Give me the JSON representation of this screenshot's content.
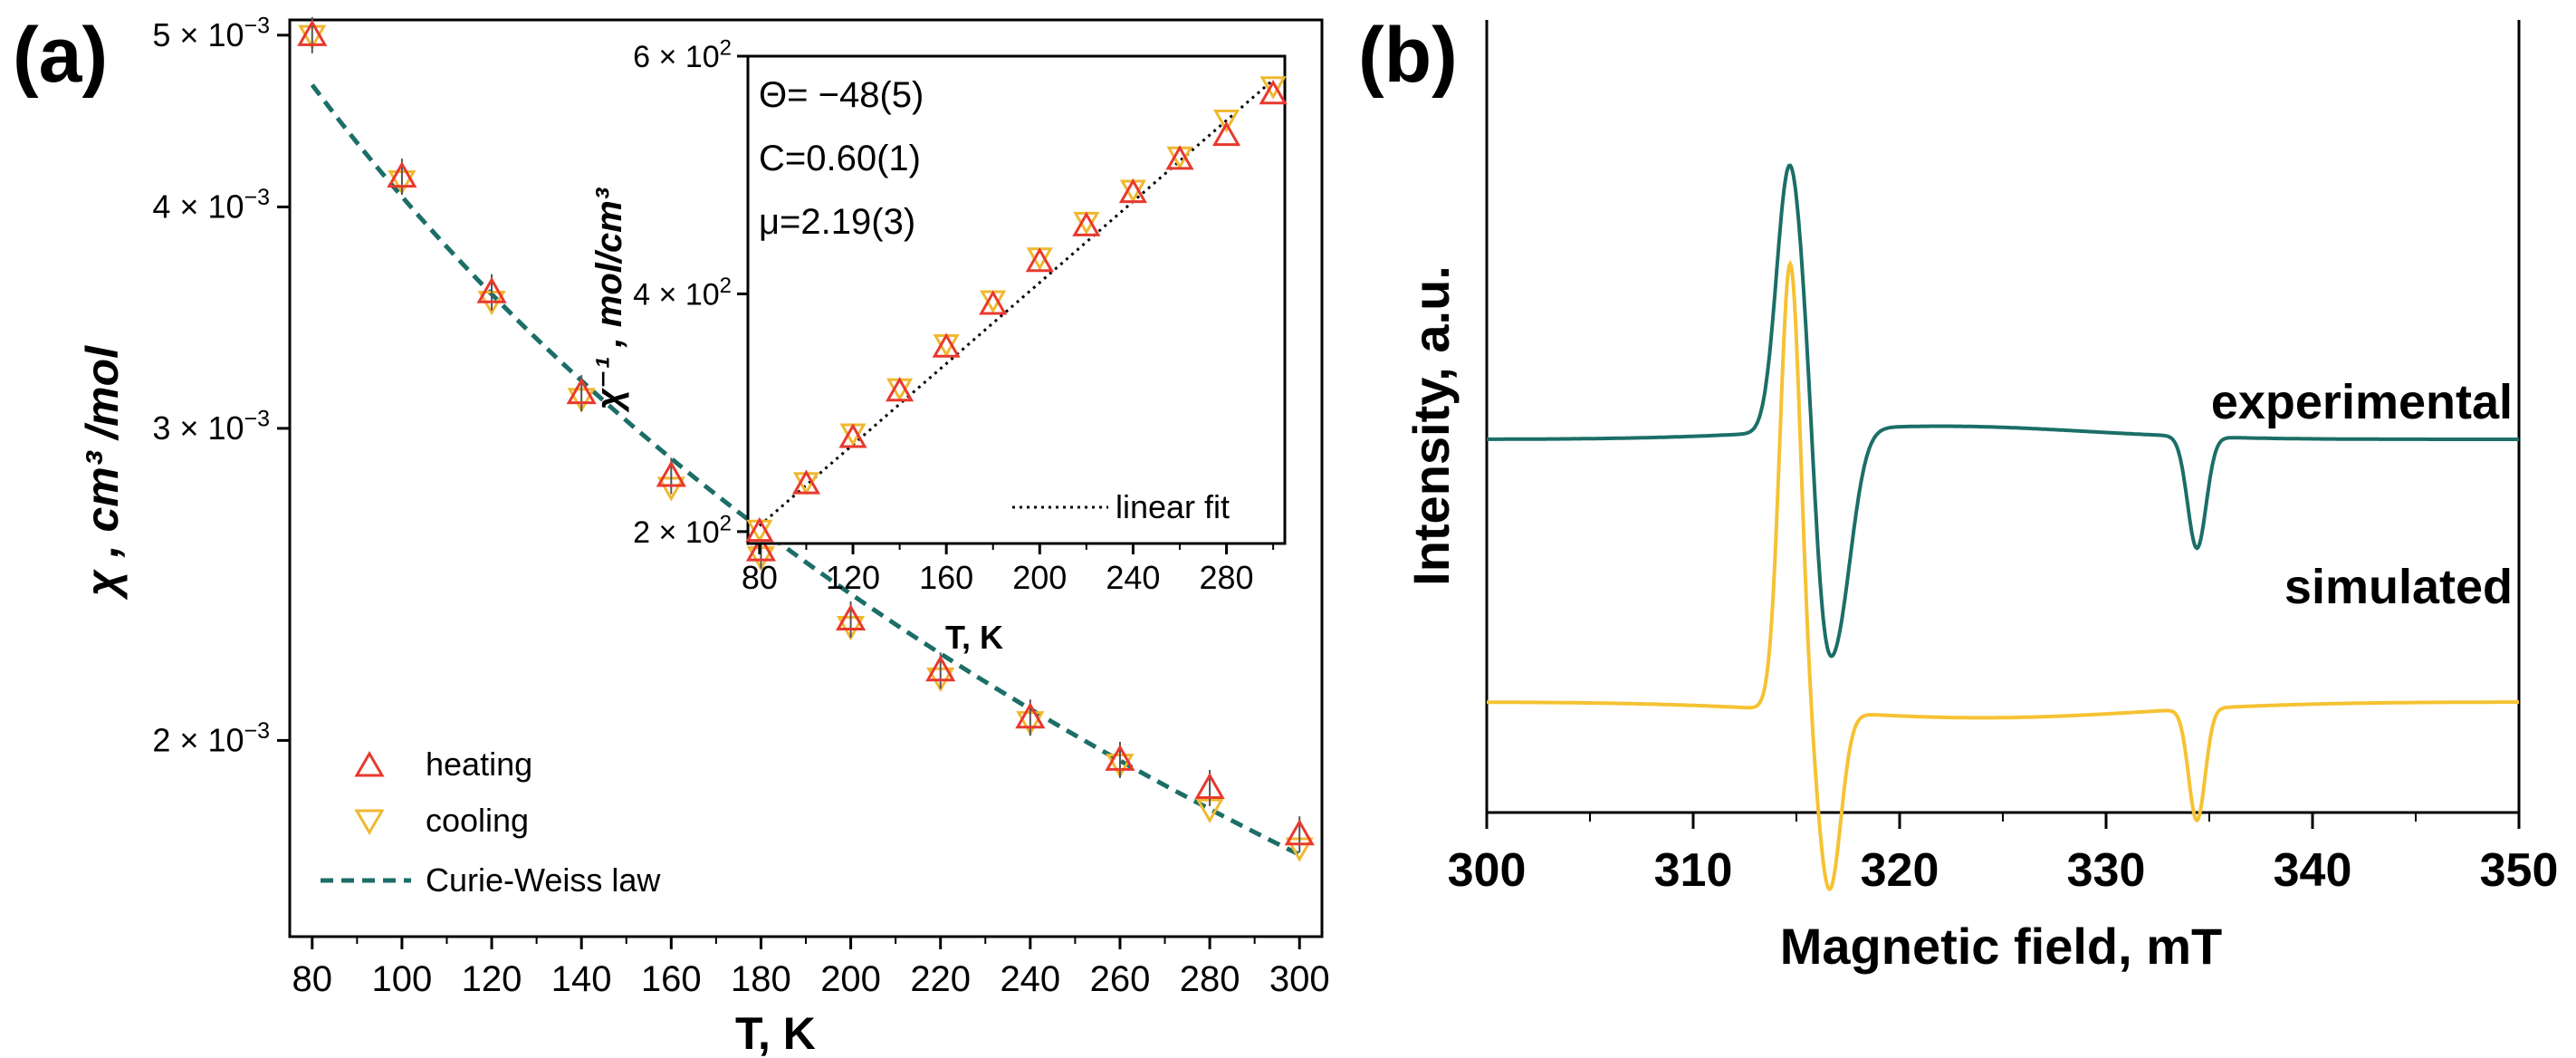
{
  "panels": {
    "a": {
      "label": "(a)"
    },
    "b": {
      "label": "(b)"
    }
  },
  "colors": {
    "heating": "#e8392e",
    "cooling": "#f0b830",
    "fit": "#1c6e68",
    "experimental": "#1c6e68",
    "simulated": "#f5c233",
    "axis": "#000000"
  },
  "chart_data": [
    {
      "id": "panel-a-main",
      "type": "scatter",
      "title": "",
      "xlabel": "T, K",
      "ylabel": "χ , cm³ /mol",
      "xlim": [
        75,
        305
      ],
      "ylim": [
        0.00155,
        0.0051
      ],
      "yscale": "log",
      "xticks": [
        80,
        100,
        120,
        140,
        160,
        180,
        200,
        220,
        240,
        260,
        280,
        300
      ],
      "yticks": [
        {
          "value": 0.005,
          "mant": "5 × 10",
          "exp": "−3"
        },
        {
          "value": 0.004,
          "mant": "4 × 10",
          "exp": "−3"
        },
        {
          "value": 0.003,
          "mant": "3 × 10",
          "exp": "−3"
        },
        {
          "value": 0.002,
          "mant": "2 × 10",
          "exp": "−3"
        }
      ],
      "series": [
        {
          "name": "heating",
          "marker": "triangle-up",
          "x": [
            80,
            100,
            120,
            140,
            160,
            180,
            200,
            220,
            240,
            260,
            280,
            300
          ],
          "y": [
            0.005,
            0.00416,
            0.00358,
            0.00314,
            0.00282,
            0.00256,
            0.00234,
            0.00219,
            0.00206,
            0.00195,
            0.00188,
            0.00177
          ]
        },
        {
          "name": "cooling",
          "marker": "triangle-down",
          "x": [
            80,
            100,
            120,
            140,
            160,
            180,
            200,
            220,
            240,
            260,
            280,
            300
          ],
          "y": [
            0.005,
            0.00414,
            0.00354,
            0.00312,
            0.00278,
            0.00254,
            0.00232,
            0.00217,
            0.00205,
            0.00194,
            0.00183,
            0.00174
          ]
        },
        {
          "name": "Curie-Weiss law",
          "style": "dashed",
          "C": 0.6,
          "theta": -48
        }
      ],
      "legend": [
        "heating",
        "cooling",
        "Curie-Weiss law"
      ],
      "legend_position": "bottom-left"
    },
    {
      "id": "panel-a-inset",
      "type": "scatter",
      "xlabel": "T, K",
      "ylabel": "χ⁻¹ , mol/cm³",
      "xlim": [
        75,
        305
      ],
      "ylim": [
        190,
        600
      ],
      "xticks": [
        80,
        120,
        160,
        200,
        240,
        280
      ],
      "xminor": [
        100,
        140,
        180,
        220,
        260,
        300
      ],
      "yticks": [
        {
          "value": 200,
          "mant": "2 × 10",
          "exp": "2"
        },
        {
          "value": 400,
          "mant": "4 × 10",
          "exp": "2"
        },
        {
          "value": 600,
          "mant": "6 × 10",
          "exp": "2"
        }
      ],
      "series": [
        {
          "name": "heating",
          "marker": "triangle-up",
          "x": [
            80,
            100,
            120,
            140,
            160,
            180,
            200,
            220,
            240,
            260,
            280,
            300
          ],
          "y": [
            200,
            240,
            279,
            318,
            355,
            391,
            427,
            457,
            485,
            513,
            533,
            568
          ]
        },
        {
          "name": "cooling",
          "marker": "triangle-down",
          "x": [
            80,
            100,
            120,
            140,
            160,
            180,
            200,
            220,
            240,
            260,
            280,
            300
          ],
          "y": [
            202,
            242,
            283,
            321,
            358,
            395,
            431,
            461,
            488,
            516,
            547,
            575
          ]
        },
        {
          "name": "linear fit",
          "style": "dotted",
          "x": [
            80,
            300
          ],
          "y": [
            205,
            580
          ]
        }
      ],
      "annotations": [
        "Θ= −48(5)",
        "C=0.60(1)",
        "μ=2.19(3)"
      ],
      "legend": [
        "linear fit"
      ],
      "legend_position": "bottom-right"
    },
    {
      "id": "panel-b",
      "type": "line",
      "xlabel": "Magnetic field, mT",
      "ylabel": "Intensity, a.u.",
      "xlim": [
        300,
        350
      ],
      "xticks": [
        300,
        310,
        320,
        330,
        340,
        350
      ],
      "yticks": [],
      "series": [
        {
          "name": "experimental",
          "baseline": 0.0,
          "peaks": [
            {
              "center": 314.6,
              "width": 0.6,
              "amp": 1.8
            },
            {
              "center": 315.6,
              "width": 0.7,
              "amp": 0.7
            },
            {
              "center": 316.2,
              "width": 0.45,
              "amp": -0.55
            },
            {
              "center": 316.8,
              "width": 0.8,
              "amp": -1.65
            },
            {
              "center": 334.4,
              "width": 0.45,
              "amp": -0.85
            }
          ],
          "broad": {
            "center": 322.0,
            "width": 7.0,
            "amp": 0.1
          }
        },
        {
          "name": "simulated",
          "baseline": -2.0,
          "peaks": [
            {
              "center": 314.7,
              "width": 0.5,
              "amp": 3.4
            },
            {
              "center": 316.6,
              "width": 0.55,
              "amp": -1.35
            },
            {
              "center": 334.4,
              "width": 0.4,
              "amp": -0.85
            }
          ],
          "broad": {
            "center": 324.0,
            "width": 8.0,
            "amp": -0.12
          }
        }
      ],
      "curve_labels": [
        "experimental",
        "simulated"
      ]
    }
  ]
}
